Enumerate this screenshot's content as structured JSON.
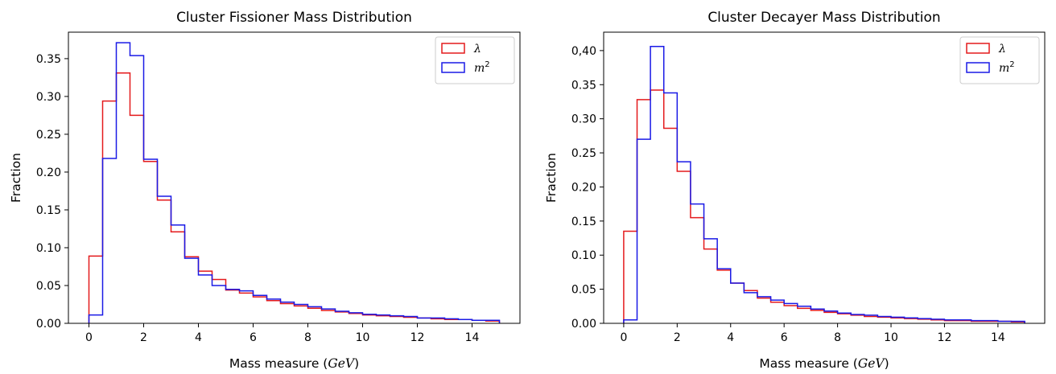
{
  "chart_data": [
    {
      "type": "histogram",
      "title": "Cluster Fissioner Mass Distribution",
      "xlabel": "Mass measure ($GeV$)",
      "xlabel_prefix": "Mass measure (",
      "xlabel_unit": "GeV",
      "xlabel_suffix": ")",
      "ylabel": "Fraction",
      "xlim": [
        -0.75,
        15.75
      ],
      "ylim": [
        0,
        0.385
      ],
      "xticks": [
        0,
        2,
        4,
        6,
        8,
        10,
        12,
        14
      ],
      "xtick_labels": [
        "0",
        "2",
        "4",
        "6",
        "8",
        "10",
        "12",
        "14"
      ],
      "yticks": [
        0,
        0.05,
        0.1,
        0.15,
        0.2,
        0.25,
        0.3,
        0.35
      ],
      "ytick_labels": [
        "0.00",
        "0.05",
        "0.10",
        "0.15",
        "0.20",
        "0.25",
        "0.30",
        "0.35"
      ],
      "bin_edges": [
        0,
        0.5,
        1,
        1.5,
        2,
        2.5,
        3,
        3.5,
        4,
        4.5,
        5,
        5.5,
        6,
        6.5,
        7,
        7.5,
        8,
        8.5,
        9,
        9.5,
        10,
        10.5,
        11,
        11.5,
        12,
        12.5,
        13,
        13.5,
        14,
        14.5,
        15
      ],
      "series": [
        {
          "name": "λ",
          "color": "#e41a1c",
          "values": [
            0.089,
            0.294,
            0.331,
            0.275,
            0.214,
            0.163,
            0.121,
            0.088,
            0.069,
            0.058,
            0.044,
            0.04,
            0.035,
            0.03,
            0.026,
            0.023,
            0.02,
            0.017,
            0.015,
            0.013,
            0.011,
            0.01,
            0.009,
            0.008,
            0.007,
            0.006,
            0.005,
            0.005,
            0.004,
            0.003
          ]
        },
        {
          "name": "m²",
          "color": "#1a1ae6",
          "values": [
            0.011,
            0.218,
            0.371,
            0.354,
            0.217,
            0.168,
            0.13,
            0.086,
            0.064,
            0.05,
            0.045,
            0.043,
            0.037,
            0.032,
            0.028,
            0.025,
            0.022,
            0.019,
            0.016,
            0.014,
            0.012,
            0.011,
            0.01,
            0.009,
            0.007,
            0.007,
            0.006,
            0.005,
            0.004,
            0.004
          ]
        }
      ],
      "legend": {
        "position": "top-right",
        "entries": [
          {
            "base": "λ",
            "sup": ""
          },
          {
            "base": "m",
            "sup": "2"
          }
        ]
      }
    },
    {
      "type": "histogram",
      "title": "Cluster Decayer Mass Distribution",
      "xlabel": "Mass measure ($GeV$)",
      "xlabel_prefix": "Mass measure (",
      "xlabel_unit": "GeV",
      "xlabel_suffix": ")",
      "ylabel": "Fraction",
      "xlim": [
        -0.75,
        15.75
      ],
      "ylim": [
        0,
        0.427
      ],
      "xticks": [
        0,
        2,
        4,
        6,
        8,
        10,
        12,
        14
      ],
      "xtick_labels": [
        "0",
        "2",
        "4",
        "6",
        "8",
        "10",
        "12",
        "14"
      ],
      "yticks": [
        0,
        0.05,
        0.1,
        0.15,
        0.2,
        0.25,
        0.3,
        0.35,
        0.4
      ],
      "ytick_labels": [
        "0.00",
        "0.05",
        "0.10",
        "0.15",
        "0.20",
        "0.25",
        "0.30",
        "0.35",
        "0,40"
      ],
      "bin_edges": [
        0,
        0.5,
        1,
        1.5,
        2,
        2.5,
        3,
        3.5,
        4,
        4.5,
        5,
        5.5,
        6,
        6.5,
        7,
        7.5,
        8,
        8.5,
        9,
        9.5,
        10,
        10.5,
        11,
        11.5,
        12,
        12.5,
        13,
        13.5,
        14,
        14.5,
        15
      ],
      "series": [
        {
          "name": "λ",
          "color": "#e41a1c",
          "values": [
            0.135,
            0.328,
            0.342,
            0.286,
            0.223,
            0.155,
            0.109,
            0.078,
            0.059,
            0.048,
            0.037,
            0.031,
            0.026,
            0.022,
            0.019,
            0.016,
            0.014,
            0.012,
            0.01,
            0.009,
            0.008,
            0.007,
            0.006,
            0.005,
            0.004,
            0.004,
            0.003,
            0.003,
            0.003,
            0.002
          ]
        },
        {
          "name": "m²",
          "color": "#1a1ae6",
          "values": [
            0.005,
            0.27,
            0.406,
            0.338,
            0.237,
            0.175,
            0.124,
            0.08,
            0.059,
            0.045,
            0.039,
            0.034,
            0.029,
            0.025,
            0.021,
            0.018,
            0.015,
            0.013,
            0.012,
            0.01,
            0.009,
            0.008,
            0.007,
            0.006,
            0.005,
            0.005,
            0.004,
            0.004,
            0.003,
            0.003
          ]
        }
      ],
      "legend": {
        "position": "top-right",
        "entries": [
          {
            "base": "λ",
            "sup": ""
          },
          {
            "base": "m",
            "sup": "2"
          }
        ]
      }
    }
  ]
}
